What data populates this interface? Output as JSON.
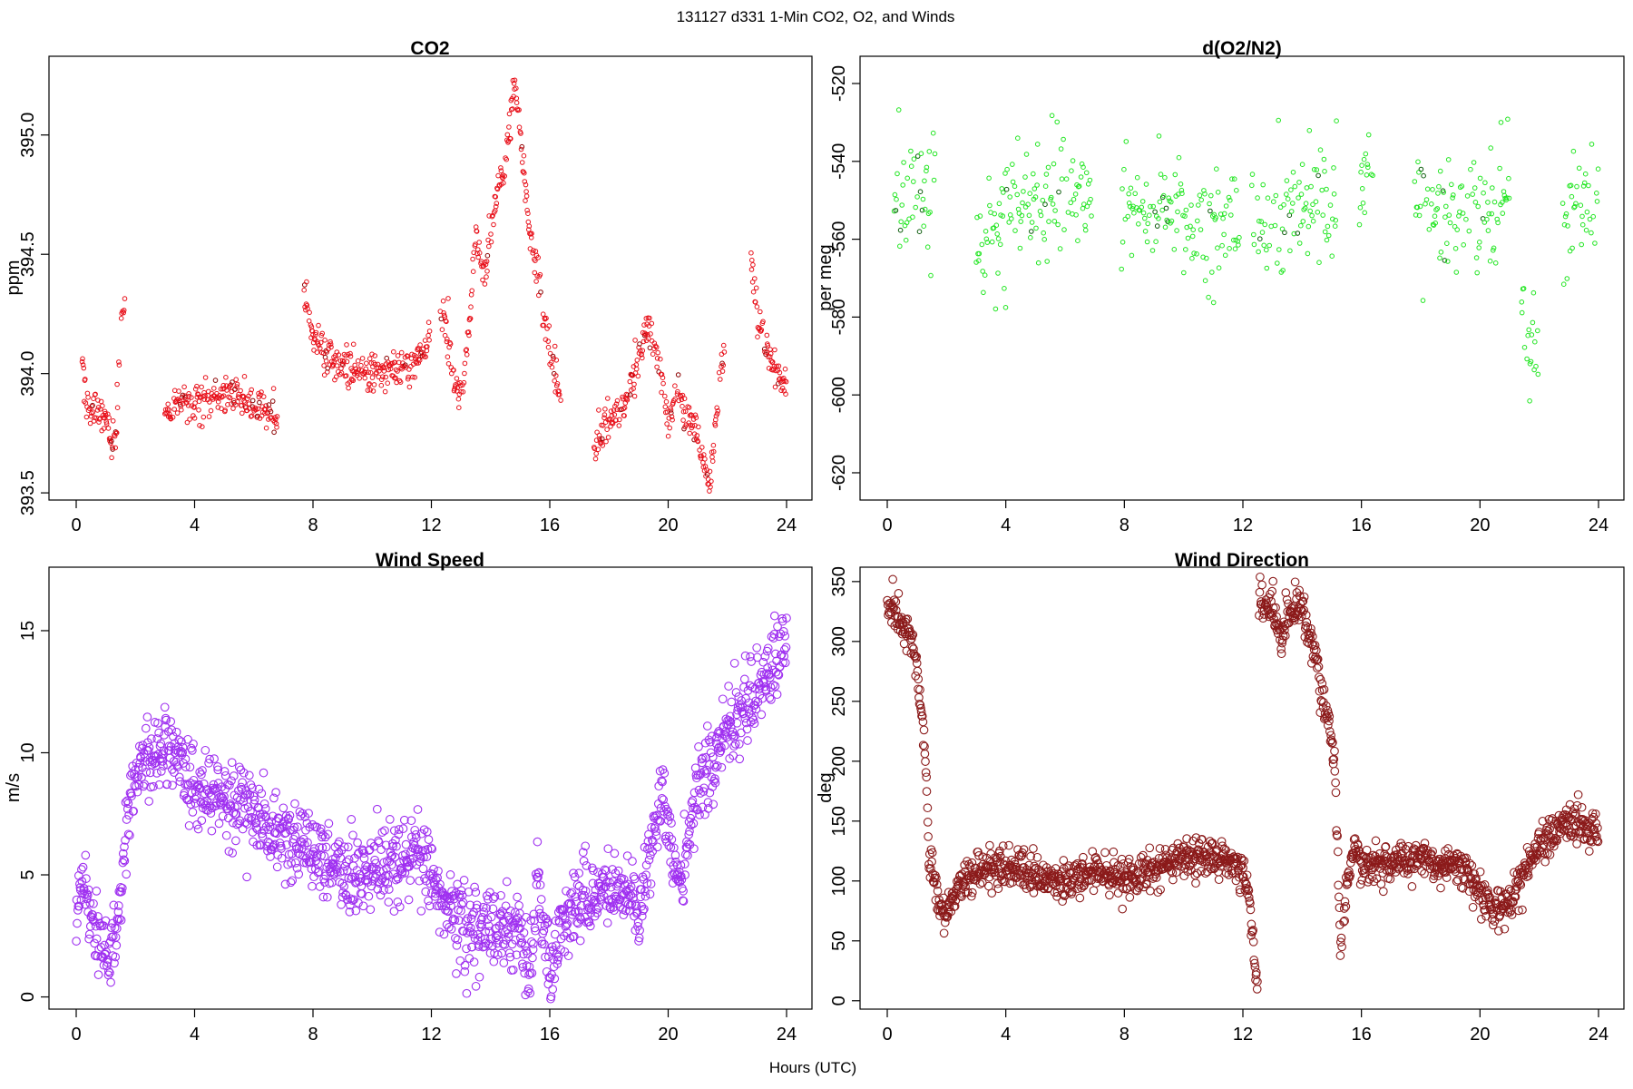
{
  "figure": {
    "title": "131127   d331   1-Min CO2, O2, and Winds",
    "xlabel": "Hours (UTC)"
  },
  "chart_data": [
    {
      "type": "scatter",
      "title": "CO2",
      "xlabel": "",
      "ylabel": "ppm",
      "xlim": [
        0,
        24
      ],
      "ylim": [
        393.47,
        395.33
      ],
      "xticks": [
        0,
        4,
        8,
        12,
        16,
        20,
        24
      ],
      "yticks": [
        393.5,
        394.0,
        394.5,
        395.0
      ],
      "ytick_labels": [
        "393.5",
        "394.0",
        "394.5",
        "395.0"
      ],
      "marker": "circle",
      "color": "#e8101a",
      "outlier_color": "#8b0000",
      "keyframes": [
        [
          0.2,
          394.05
        ],
        [
          0.4,
          393.82
        ],
        [
          0.7,
          393.85
        ],
        [
          1.0,
          393.8
        ],
        [
          1.2,
          393.7
        ],
        [
          1.35,
          393.75
        ],
        [
          1.5,
          394.2
        ],
        [
          1.6,
          394.3
        ],
        [
          3.0,
          393.84
        ],
        [
          3.5,
          393.87
        ],
        [
          4.0,
          393.88
        ],
        [
          4.7,
          393.9
        ],
        [
          5.5,
          393.9
        ],
        [
          6.3,
          393.87
        ],
        [
          6.8,
          393.8
        ],
        [
          7.7,
          394.35
        ],
        [
          8.0,
          394.17
        ],
        [
          8.5,
          394.07
        ],
        [
          9.0,
          394.03
        ],
        [
          9.5,
          394.01
        ],
        [
          10.0,
          394.01
        ],
        [
          10.5,
          394.02
        ],
        [
          11.0,
          394.03
        ],
        [
          11.5,
          394.06
        ],
        [
          11.9,
          394.13
        ],
        [
          12.4,
          394.25
        ],
        [
          12.8,
          393.95
        ],
        [
          13.0,
          393.9
        ],
        [
          13.3,
          394.2
        ],
        [
          13.5,
          394.6
        ],
        [
          13.8,
          394.4
        ],
        [
          14.2,
          394.75
        ],
        [
          14.5,
          394.9
        ],
        [
          14.8,
          395.2
        ],
        [
          15.0,
          395.0
        ],
        [
          15.3,
          394.6
        ],
        [
          15.6,
          394.4
        ],
        [
          16.0,
          394.1
        ],
        [
          16.4,
          393.85
        ],
        [
          17.5,
          393.7
        ],
        [
          18.0,
          393.8
        ],
        [
          18.5,
          393.85
        ],
        [
          19.0,
          394.05
        ],
        [
          19.3,
          394.2
        ],
        [
          19.7,
          394.05
        ],
        [
          20.0,
          393.8
        ],
        [
          20.3,
          393.95
        ],
        [
          20.6,
          393.85
        ],
        [
          21.0,
          393.75
        ],
        [
          21.4,
          393.52
        ],
        [
          21.6,
          393.8
        ],
        [
          21.9,
          394.1
        ],
        [
          22.8,
          394.55
        ],
        [
          23.0,
          394.25
        ],
        [
          23.3,
          394.1
        ],
        [
          23.6,
          394.0
        ],
        [
          24.0,
          393.95
        ]
      ],
      "segments": [
        [
          0.2,
          1.65
        ],
        [
          3.0,
          6.8
        ],
        [
          7.7,
          11.95
        ],
        [
          12.3,
          16.4
        ],
        [
          17.5,
          21.9
        ],
        [
          22.8,
          24.0
        ]
      ],
      "spread": 0.04,
      "point_spacing": 0.0167,
      "count": 760
    },
    {
      "type": "scatter",
      "title": "d(O2/N2)",
      "xlabel": "",
      "ylabel": "per meg",
      "xlim": [
        0,
        24
      ],
      "ylim": [
        -627,
        -513
      ],
      "xticks": [
        0,
        4,
        8,
        12,
        16,
        20,
        24
      ],
      "yticks": [
        -620,
        -600,
        -580,
        -560,
        -540,
        -520
      ],
      "ytick_labels": [
        "-620",
        "-600",
        "-580",
        "-560",
        "-540",
        "-520"
      ],
      "marker": "circle",
      "color": "#22e622",
      "outlier_color": "#0a5a0a",
      "keyframes": [
        [
          0.2,
          -546
        ],
        [
          1.0,
          -551
        ],
        [
          1.5,
          -549
        ],
        [
          3.0,
          -565
        ],
        [
          4.0,
          -551
        ],
        [
          5.0,
          -548
        ],
        [
          6.0,
          -548
        ],
        [
          7.0,
          -549
        ],
        [
          8.0,
          -550
        ],
        [
          9.0,
          -552
        ],
        [
          10.0,
          -554
        ],
        [
          11.0,
          -558
        ],
        [
          12.0,
          -554
        ],
        [
          13.0,
          -555
        ],
        [
          14.0,
          -553
        ],
        [
          15.0,
          -550
        ],
        [
          16.0,
          -545
        ],
        [
          17.8,
          -550
        ],
        [
          19.0,
          -552
        ],
        [
          20.0,
          -556
        ],
        [
          21.0,
          -550
        ],
        [
          21.5,
          -585
        ],
        [
          22.0,
          -590
        ],
        [
          22.8,
          -555
        ],
        [
          24.0,
          -548
        ]
      ],
      "segments": [
        [
          0.2,
          1.65
        ],
        [
          3.0,
          6.9
        ],
        [
          7.9,
          11.9
        ],
        [
          12.3,
          15.2
        ],
        [
          15.9,
          16.4
        ],
        [
          17.8,
          21.0
        ],
        [
          21.4,
          22.0
        ],
        [
          22.8,
          24.0
        ]
      ],
      "spread": 8,
      "point_spacing": 0.027,
      "count": 600
    },
    {
      "type": "scatter",
      "title": "Wind Speed",
      "xlabel": "",
      "ylabel": "m/s",
      "xlim": [
        0,
        24
      ],
      "ylim": [
        -0.5,
        17.6
      ],
      "xticks": [
        0,
        4,
        8,
        12,
        16,
        20,
        24
      ],
      "yticks": [
        0,
        5,
        10,
        15
      ],
      "ytick_labels": [
        "0",
        "5",
        "10",
        "15"
      ],
      "marker": "circle",
      "color": "#9f30f0",
      "keyframes": [
        [
          0,
          3.2
        ],
        [
          0.2,
          5.0
        ],
        [
          0.5,
          3.5
        ],
        [
          0.8,
          2.5
        ],
        [
          1.1,
          1.2
        ],
        [
          1.4,
          3.5
        ],
        [
          1.8,
          7.5
        ],
        [
          2.2,
          9.5
        ],
        [
          3.0,
          10.3
        ],
        [
          3.5,
          10.0
        ],
        [
          4.0,
          8.5
        ],
        [
          4.8,
          8.0
        ],
        [
          5.5,
          8.0
        ],
        [
          6.0,
          7.5
        ],
        [
          6.5,
          7.0
        ],
        [
          7.0,
          6.5
        ],
        [
          8.0,
          6.0
        ],
        [
          9.0,
          5.0
        ],
        [
          10.0,
          5.0
        ],
        [
          11.0,
          5.5
        ],
        [
          11.5,
          6.0
        ],
        [
          12.0,
          5.0
        ],
        [
          12.5,
          3.5
        ],
        [
          13.0,
          3.0
        ],
        [
          14.0,
          2.5
        ],
        [
          15.0,
          3.0
        ],
        [
          15.3,
          0.5
        ],
        [
          15.6,
          5.0
        ],
        [
          16.0,
          1.0
        ],
        [
          16.5,
          3.5
        ],
        [
          17.0,
          4.0
        ],
        [
          18.0,
          4.3
        ],
        [
          18.8,
          4.2
        ],
        [
          19.0,
          3.0
        ],
        [
          19.5,
          7.0
        ],
        [
          19.8,
          8.5
        ],
        [
          20.2,
          5.0
        ],
        [
          20.5,
          4.5
        ],
        [
          21.0,
          9.0
        ],
        [
          21.5,
          9.5
        ],
        [
          22.0,
          11.0
        ],
        [
          23.0,
          12.5
        ],
        [
          23.5,
          13.5
        ],
        [
          24.0,
          14.5
        ]
      ],
      "segments": [
        [
          0,
          24
        ]
      ],
      "spread": 0.8,
      "point_spacing": 0.0167,
      "count": 1440
    },
    {
      "type": "scatter",
      "title": "Wind Direction",
      "xlabel": "",
      "ylabel": "deg",
      "xlim": [
        0,
        24
      ],
      "ylim": [
        -7,
        362
      ],
      "xticks": [
        0,
        4,
        8,
        12,
        16,
        20,
        24
      ],
      "yticks": [
        0,
        50,
        100,
        150,
        200,
        250,
        300,
        350
      ],
      "ytick_labels": [
        "0",
        "50",
        "100",
        "150",
        "200",
        "250",
        "300",
        "350"
      ],
      "marker": "circle",
      "color": "#8b1a1a",
      "keyframes": [
        [
          0,
          330
        ],
        [
          0.5,
          315
        ],
        [
          0.9,
          295
        ],
        [
          1.1,
          250
        ],
        [
          1.3,
          200
        ],
        [
          1.4,
          120
        ],
        [
          1.7,
          85
        ],
        [
          2.0,
          75
        ],
        [
          2.5,
          100
        ],
        [
          3.0,
          108
        ],
        [
          4.0,
          110
        ],
        [
          5.0,
          105
        ],
        [
          6.0,
          100
        ],
        [
          7.0,
          108
        ],
        [
          8.0,
          100
        ],
        [
          9.0,
          110
        ],
        [
          10.0,
          120
        ],
        [
          11.0,
          120
        ],
        [
          12.0,
          110
        ],
        [
          12.2,
          90
        ],
        [
          12.5,
          10
        ],
        [
          12.55,
          330
        ],
        [
          13.0,
          330
        ],
        [
          13.3,
          300
        ],
        [
          13.6,
          320
        ],
        [
          14.0,
          330
        ],
        [
          14.5,
          280
        ],
        [
          14.8,
          240
        ],
        [
          15.1,
          200
        ],
        [
          15.3,
          40
        ],
        [
          15.5,
          90
        ],
        [
          15.8,
          130
        ],
        [
          16.0,
          110
        ],
        [
          17.0,
          115
        ],
        [
          18.0,
          120
        ],
        [
          18.5,
          110
        ],
        [
          19.0,
          115
        ],
        [
          19.5,
          110
        ],
        [
          20.0,
          90
        ],
        [
          20.5,
          75
        ],
        [
          21.0,
          80
        ],
        [
          21.5,
          110
        ],
        [
          22.0,
          130
        ],
        [
          22.5,
          140
        ],
        [
          23.0,
          150
        ],
        [
          24.0,
          143
        ]
      ],
      "segments": [
        [
          0,
          12.5
        ],
        [
          12.55,
          15.35
        ],
        [
          15.4,
          24.0
        ]
      ],
      "spread": 8,
      "point_spacing": 0.0167,
      "count": 1440
    }
  ]
}
